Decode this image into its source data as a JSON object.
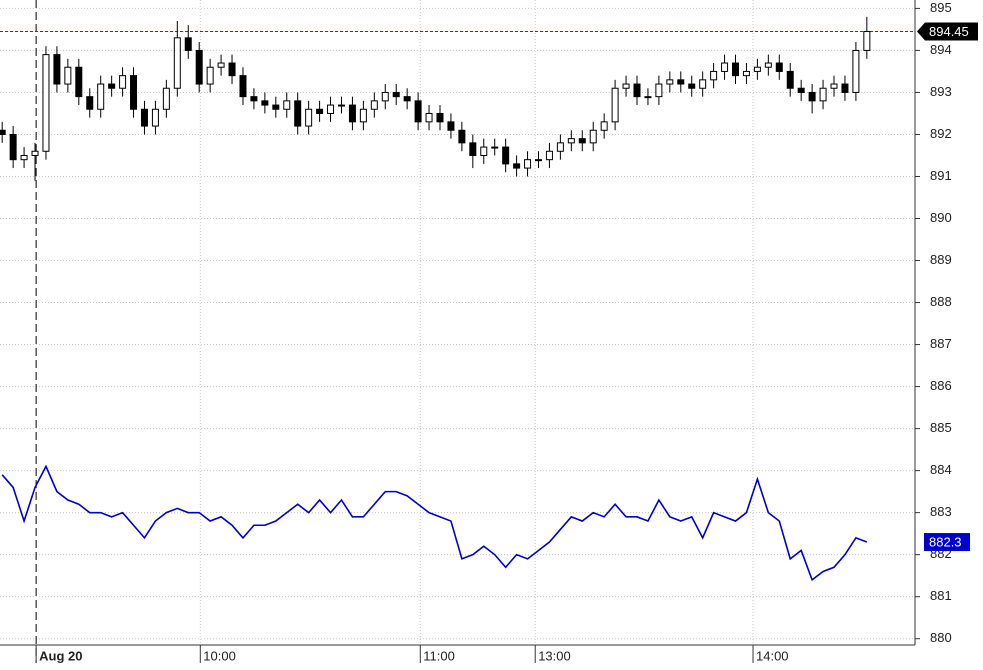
{
  "chart_data": {
    "type": "candlestick",
    "xlim": [
      -0.2,
      83.4
    ],
    "ylim": [
      879.85,
      895.2
    ],
    "yticks": [
      880,
      881,
      882,
      883,
      884,
      885,
      886,
      887,
      888,
      889,
      890,
      891,
      892,
      893,
      894,
      895
    ],
    "xticks": [
      {
        "value": 3.1,
        "label": "Aug 20"
      },
      {
        "value": 18.1,
        "label": "10:00"
      },
      {
        "value": 38.2,
        "label": "11:00"
      },
      {
        "value": 48.7,
        "label": "13:00"
      },
      {
        "value": 68.6,
        "label": "14:00"
      }
    ],
    "grid": true,
    "price_line_color": "#cc0000",
    "candles": {
      "color": "#000000",
      "open": [
        892.1,
        892.0,
        891.4,
        891.5,
        891.6,
        893.9,
        893.2,
        893.6,
        892.9,
        892.6,
        893.2,
        893.1,
        893.4,
        892.6,
        892.2,
        892.6,
        893.1,
        894.3,
        894.0,
        893.2,
        893.6,
        893.7,
        893.4,
        892.9,
        892.8,
        892.7,
        892.6,
        892.8,
        892.2,
        892.6,
        892.5,
        892.7,
        892.7,
        892.3,
        892.6,
        892.8,
        893.0,
        892.9,
        892.8,
        892.3,
        892.5,
        892.3,
        892.1,
        891.8,
        891.5,
        891.7,
        891.7,
        891.3,
        891.2,
        891.4,
        891.4,
        891.6,
        891.8,
        891.9,
        891.8,
        892.1,
        892.3,
        893.1,
        893.2,
        892.9,
        892.9,
        893.2,
        893.3,
        893.2,
        893.1,
        893.3,
        893.5,
        893.7,
        893.4,
        893.5,
        893.6,
        893.7,
        893.5,
        893.1,
        893.0,
        892.8,
        893.1,
        893.2,
        893.0,
        894.0
      ],
      "high": [
        892.3,
        892.2,
        891.7,
        891.8,
        894.1,
        894.1,
        893.8,
        893.8,
        893.1,
        893.4,
        893.4,
        893.6,
        893.6,
        892.8,
        892.8,
        893.3,
        894.7,
        894.6,
        894.2,
        893.8,
        893.9,
        893.9,
        893.6,
        893.1,
        893.0,
        892.9,
        893.0,
        893.0,
        892.8,
        892.8,
        892.9,
        892.9,
        892.9,
        892.8,
        893.0,
        893.2,
        893.2,
        893.1,
        893.0,
        892.7,
        892.7,
        892.5,
        892.3,
        892.0,
        891.9,
        891.9,
        891.9,
        891.5,
        891.6,
        891.6,
        891.8,
        892.0,
        892.1,
        892.1,
        892.3,
        892.5,
        893.3,
        893.4,
        893.4,
        893.1,
        893.4,
        893.5,
        893.5,
        893.4,
        893.5,
        893.7,
        893.9,
        893.9,
        893.7,
        893.8,
        893.9,
        893.9,
        893.7,
        893.3,
        893.2,
        893.3,
        893.4,
        893.4,
        894.2,
        894.8
      ],
      "low": [
        891.8,
        891.2,
        891.2,
        890.9,
        891.4,
        893.0,
        893.0,
        892.7,
        892.4,
        892.4,
        892.9,
        892.9,
        892.4,
        892.0,
        892.0,
        892.4,
        892.9,
        893.8,
        893.0,
        893.0,
        893.4,
        893.2,
        892.7,
        892.6,
        892.5,
        892.4,
        892.4,
        892.0,
        892.0,
        892.3,
        892.3,
        892.5,
        892.1,
        892.1,
        892.4,
        892.6,
        892.7,
        892.6,
        892.1,
        892.1,
        892.1,
        891.9,
        891.6,
        891.2,
        891.3,
        891.5,
        891.1,
        891.0,
        891.0,
        891.2,
        891.2,
        891.4,
        891.6,
        891.6,
        891.6,
        891.9,
        892.1,
        892.9,
        892.7,
        892.7,
        892.7,
        893.0,
        893.0,
        892.9,
        892.9,
        893.1,
        893.3,
        893.2,
        893.2,
        893.3,
        893.4,
        893.3,
        892.9,
        892.8,
        892.5,
        892.6,
        892.9,
        892.8,
        892.8,
        893.8
      ],
      "close": [
        892.0,
        891.4,
        891.5,
        891.6,
        893.9,
        893.2,
        893.6,
        892.9,
        892.6,
        893.2,
        893.1,
        893.4,
        892.6,
        892.2,
        892.6,
        893.1,
        894.3,
        894.0,
        893.2,
        893.6,
        893.7,
        893.4,
        892.9,
        892.8,
        892.7,
        892.6,
        892.8,
        892.2,
        892.6,
        892.5,
        892.7,
        892.7,
        892.3,
        892.6,
        892.8,
        893.0,
        892.9,
        892.8,
        892.3,
        892.5,
        892.3,
        892.1,
        891.8,
        891.5,
        891.7,
        891.7,
        891.3,
        891.2,
        891.4,
        891.4,
        891.6,
        891.8,
        891.9,
        891.8,
        892.1,
        892.3,
        893.1,
        893.2,
        892.9,
        892.9,
        893.2,
        893.3,
        893.2,
        893.1,
        893.3,
        893.5,
        893.7,
        893.4,
        893.5,
        893.6,
        893.7,
        893.5,
        893.1,
        893.0,
        892.8,
        893.1,
        893.2,
        893.0,
        894.0,
        894.45
      ]
    },
    "series": [
      {
        "color": "#0000cc",
        "values": [
          883.9,
          883.6,
          882.8,
          883.6,
          884.1,
          883.5,
          883.3,
          883.2,
          883.0,
          883.0,
          882.9,
          883.0,
          882.7,
          882.4,
          882.8,
          883.0,
          883.1,
          883.0,
          883.0,
          882.8,
          882.9,
          882.7,
          882.4,
          882.7,
          882.7,
          882.8,
          883.0,
          883.2,
          883.0,
          883.3,
          883.0,
          883.3,
          882.9,
          882.9,
          883.2,
          883.5,
          883.5,
          883.4,
          883.2,
          883.0,
          882.9,
          882.8,
          881.9,
          882.0,
          882.2,
          882.0,
          881.7,
          882.0,
          881.9,
          882.1,
          882.3,
          882.6,
          882.9,
          882.8,
          883.0,
          882.9,
          883.2,
          882.9,
          882.9,
          882.8,
          883.3,
          882.9,
          882.8,
          882.9,
          882.4,
          883.0,
          882.9,
          882.8,
          883.0,
          883.8,
          883.0,
          882.8,
          881.9,
          882.1,
          881.4,
          881.6,
          881.7,
          882.0,
          882.4,
          882.3
        ]
      }
    ]
  }
}
